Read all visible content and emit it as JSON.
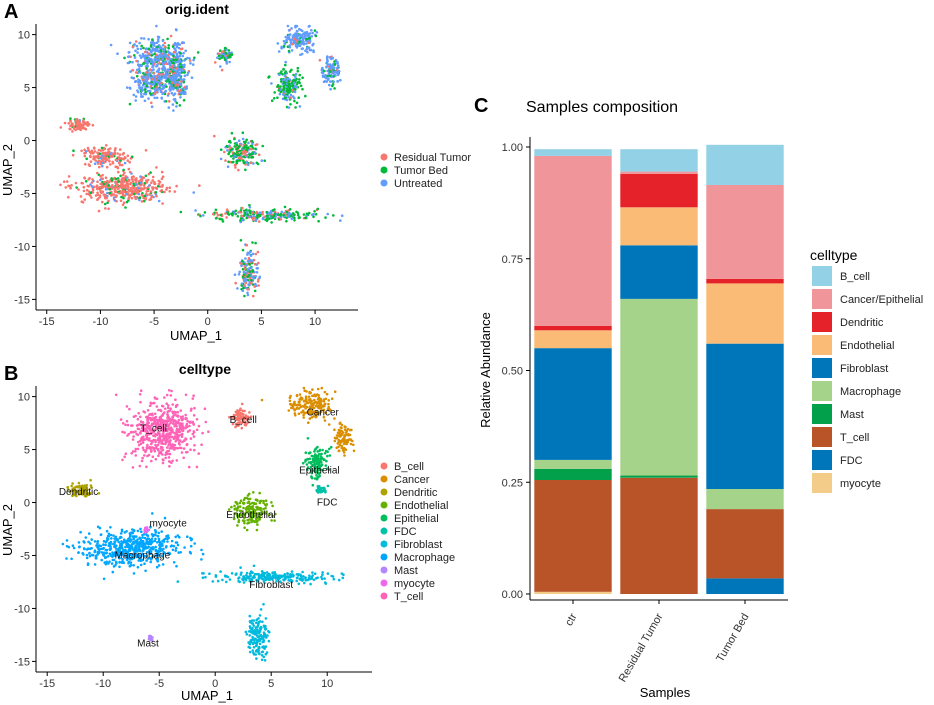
{
  "panel_letters": {
    "a": "A",
    "b": "B",
    "c": "C"
  },
  "chart_data": [
    {
      "id": "A",
      "type": "scatter",
      "title": "orig.ident",
      "xlabel": "UMAP_1",
      "ylabel": "UMAP_2",
      "xlim": [
        -16,
        14
      ],
      "ylim": [
        -16,
        11
      ],
      "xticks": [
        -15,
        -10,
        -5,
        0,
        5,
        10
      ],
      "yticks": [
        -15,
        -10,
        -5,
        0,
        5,
        10
      ],
      "legend": [
        {
          "label": "Residual Tumor",
          "color": "#F8766D"
        },
        {
          "label": "Tumor Bed",
          "color": "#00BA38"
        },
        {
          "label": "Untreated",
          "color": "#619CFF"
        }
      ],
      "islands": [
        {
          "cx": -4.5,
          "cy": 8.0,
          "rx": 3.0,
          "ry": 1.8,
          "mix": [
            0.15,
            0.2,
            0.65
          ]
        },
        {
          "cx": -5.0,
          "cy": 5.5,
          "rx": 2.2,
          "ry": 1.8,
          "mix": [
            0.15,
            0.2,
            0.65
          ]
        },
        {
          "cx": -3.0,
          "cy": 5.8,
          "rx": 1.2,
          "ry": 2.4,
          "mix": [
            0.15,
            0.2,
            0.65
          ]
        },
        {
          "cx": 1.6,
          "cy": 8.0,
          "rx": 0.7,
          "ry": 0.8,
          "mix": [
            0.2,
            0.4,
            0.4
          ]
        },
        {
          "cx": 8.5,
          "cy": 9.5,
          "rx": 1.8,
          "ry": 1.2,
          "mix": [
            0.05,
            0.15,
            0.8
          ]
        },
        {
          "cx": 7.5,
          "cy": 5.0,
          "rx": 1.3,
          "ry": 1.8,
          "mix": [
            0.05,
            0.65,
            0.3
          ]
        },
        {
          "cx": 11.5,
          "cy": 6.5,
          "rx": 0.9,
          "ry": 1.5,
          "mix": [
            0.05,
            0.2,
            0.75
          ]
        },
        {
          "cx": 3.2,
          "cy": -1.0,
          "rx": 1.7,
          "ry": 1.5,
          "mix": [
            0.25,
            0.5,
            0.25
          ]
        },
        {
          "cx": -8.0,
          "cy": -4.5,
          "rx": 4.5,
          "ry": 1.6,
          "mix": [
            0.8,
            0.12,
            0.08
          ]
        },
        {
          "cx": -9.5,
          "cy": -1.5,
          "rx": 2.2,
          "ry": 1.0,
          "mix": [
            0.8,
            0.1,
            0.1
          ]
        },
        {
          "cx": -12.0,
          "cy": 1.5,
          "rx": 1.2,
          "ry": 0.6,
          "mix": [
            0.85,
            0.05,
            0.1
          ]
        },
        {
          "cx": 5.0,
          "cy": -7.0,
          "rx": 6.0,
          "ry": 0.6,
          "mix": [
            0.2,
            0.5,
            0.3
          ]
        },
        {
          "cx": 3.8,
          "cy": -12.5,
          "rx": 1.0,
          "ry": 2.3,
          "mix": [
            0.3,
            0.3,
            0.4
          ]
        }
      ]
    },
    {
      "id": "B",
      "type": "scatter",
      "title": "celltype",
      "xlabel": "UMAP_1",
      "ylabel": "UMAP_2",
      "xlim": [
        -16,
        14
      ],
      "ylim": [
        -16,
        11
      ],
      "xticks": [
        -15,
        -10,
        -5,
        0,
        5,
        10
      ],
      "yticks": [
        -15,
        -10,
        -5,
        0,
        5,
        10
      ],
      "legend": [
        {
          "label": "B_cell",
          "color": "#F8766D"
        },
        {
          "label": "Cancer",
          "color": "#DB8E00"
        },
        {
          "label": "Dendritic",
          "color": "#AEA200"
        },
        {
          "label": "Endothelial",
          "color": "#64B200"
        },
        {
          "label": "Epithelial",
          "color": "#00BD5C"
        },
        {
          "label": "FDC",
          "color": "#00C1A7"
        },
        {
          "label": "Fibroblast",
          "color": "#00BADE"
        },
        {
          "label": "Macrophage",
          "color": "#00A6FF"
        },
        {
          "label": "Mast",
          "color": "#B385FF"
        },
        {
          "label": "myocyte",
          "color": "#EF67EB"
        },
        {
          "label": "T_cell",
          "color": "#FF63B6"
        }
      ],
      "clusters": [
        {
          "name": "T_cell",
          "cx": -4.8,
          "cy": 6.8,
          "rx": 3.3,
          "ry": 3.0,
          "label_at": [
            -5.5,
            7.0
          ]
        },
        {
          "name": "B_cell",
          "cx": 2.3,
          "cy": 8.0,
          "rx": 0.9,
          "ry": 1.0,
          "label_at": [
            2.5,
            7.8
          ]
        },
        {
          "name": "Cancer",
          "cx": 8.5,
          "cy": 9.2,
          "rx": 2.0,
          "ry": 1.4,
          "label_at": [
            9.6,
            8.5
          ]
        },
        {
          "name": "Cancer",
          "cx": 11.5,
          "cy": 6.0,
          "rx": 0.9,
          "ry": 1.4,
          "label_at": null
        },
        {
          "name": "Epithelial",
          "cx": 9.0,
          "cy": 3.8,
          "rx": 1.2,
          "ry": 1.6,
          "label_at": [
            9.3,
            3.0
          ]
        },
        {
          "name": "FDC",
          "cx": 9.5,
          "cy": 1.2,
          "rx": 0.5,
          "ry": 0.4,
          "label_at": [
            10.0,
            0.0
          ]
        },
        {
          "name": "Endothelial",
          "cx": 3.2,
          "cy": -0.8,
          "rx": 1.7,
          "ry": 1.5,
          "label_at": [
            3.2,
            -1.2
          ]
        },
        {
          "name": "Dendritic",
          "cx": -12.0,
          "cy": 1.2,
          "rx": 1.4,
          "ry": 0.8,
          "label_at": [
            -12.2,
            1.0
          ]
        },
        {
          "name": "Macrophage",
          "cx": -7.5,
          "cy": -4.3,
          "rx": 4.8,
          "ry": 1.9,
          "label_at": [
            -6.5,
            -5.0
          ]
        },
        {
          "name": "myocyte",
          "cx": -6.2,
          "cy": -2.6,
          "rx": 0.3,
          "ry": 0.3,
          "label_at": [
            -4.2,
            -2.0
          ]
        },
        {
          "name": "Fibroblast",
          "cx": 5.0,
          "cy": -7.0,
          "rx": 6.0,
          "ry": 0.6,
          "label_at": [
            5.0,
            -7.8
          ]
        },
        {
          "name": "Fibroblast",
          "cx": 3.8,
          "cy": -12.5,
          "rx": 1.0,
          "ry": 2.3,
          "label_at": null
        },
        {
          "name": "Mast",
          "cx": -5.8,
          "cy": -12.8,
          "rx": 0.2,
          "ry": 0.2,
          "label_at": [
            -6.0,
            -13.3
          ]
        }
      ]
    },
    {
      "id": "C",
      "type": "bar",
      "stacked": true,
      "title": "Samples composition",
      "xlabel": "Samples",
      "ylabel": "Relative Abundance",
      "ylim": [
        0,
        1
      ],
      "yticks": [
        0.0,
        0.25,
        0.5,
        0.75,
        1.0
      ],
      "ytick_labels": [
        "0.00",
        "0.25",
        "0.50",
        "0.75",
        "1.00"
      ],
      "categories": [
        "ctr",
        "Residual Tumor",
        "Tumor Bed"
      ],
      "legend_title": "celltype",
      "series": [
        {
          "name": "B_cell",
          "color": "#92D1E6",
          "values": [
            0.015,
            0.05,
            0.09
          ]
        },
        {
          "name": "Cancer/Epithelial",
          "color": "#F0959A",
          "values": [
            0.38,
            0.005,
            0.21
          ]
        },
        {
          "name": "Dendritic",
          "color": "#E5222A",
          "values": [
            0.01,
            0.075,
            0.01
          ]
        },
        {
          "name": "Endothelial",
          "color": "#F9BB76",
          "values": [
            0.04,
            0.085,
            0.135
          ]
        },
        {
          "name": "Fibroblast",
          "color": "#0076BA",
          "values": [
            0.25,
            0.12,
            0.325
          ]
        },
        {
          "name": "Macrophage",
          "color": "#A6D38A",
          "values": [
            0.02,
            0.395,
            0.045
          ]
        },
        {
          "name": "Mast",
          "color": "#03A04B",
          "values": [
            0.025,
            0.005,
            0.0
          ]
        },
        {
          "name": "T_cell",
          "color": "#B85428",
          "values": [
            0.25,
            0.26,
            0.155
          ]
        },
        {
          "name": "FDC",
          "color": "#0076BA",
          "values": [
            0.0,
            0.0,
            0.035
          ]
        },
        {
          "name": "myocyte",
          "color": "#F2CC88",
          "values": [
            0.005,
            0.0,
            0.0
          ]
        }
      ]
    }
  ]
}
